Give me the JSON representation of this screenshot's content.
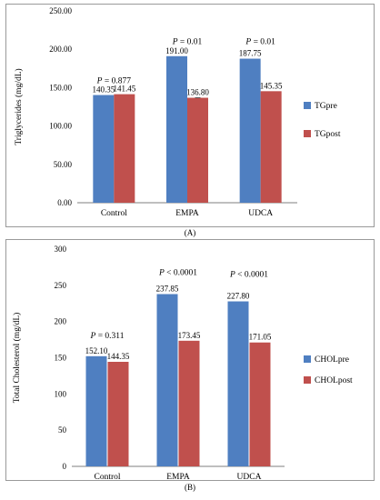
{
  "colors": {
    "pre": "#4f7fc1",
    "post": "#c0504d",
    "error": "#555555",
    "grid": "#d9d9d9",
    "axis": "#7f7f7f"
  },
  "chart_data": [
    {
      "type": "bar",
      "panel_label": "(A)",
      "ylabel": "Triglycerides (mg/dL)",
      "ylim": [
        0,
        250
      ],
      "ytick_step": 50,
      "ytick_decimals": 2,
      "grid": false,
      "legend_position": "right",
      "categories": [
        "Control",
        "EMPA",
        "UDCA"
      ],
      "series": [
        {
          "name": "TGpre",
          "color": "#4f7fc1",
          "values": [
            140.35,
            191.0,
            187.75
          ],
          "labels": [
            "140.35",
            "191.00",
            "187.75"
          ]
        },
        {
          "name": "TGpost",
          "color": "#c0504d",
          "values": [
            141.45,
            136.8,
            145.35
          ],
          "labels": [
            "141.45",
            "136.80",
            "145.35"
          ]
        }
      ],
      "error_bars": [
        null,
        [
          0,
          10,
          0
        ],
        null
      ],
      "annotations": [
        "P = 0.877",
        "P = 0.01",
        "P = 0.01"
      ],
      "annotation_values": [
        156,
        207,
        207
      ]
    },
    {
      "type": "bar",
      "panel_label": "(B)",
      "ylabel": "Total Cholesterol (mg/dL)",
      "ylim": [
        0,
        300
      ],
      "ytick_step": 50,
      "ytick_decimals": 0,
      "grid": false,
      "legend_position": "right",
      "categories": [
        "Control",
        "EMPA",
        "UDCA"
      ],
      "series": [
        {
          "name": "CHOLpre",
          "color": "#4f7fc1",
          "values": [
            152.1,
            237.85,
            227.8
          ],
          "labels": [
            "152.10",
            "237.85",
            "227.80"
          ]
        },
        {
          "name": "CHOLpost",
          "color": "#c0504d",
          "values": [
            144.35,
            173.45,
            171.05
          ],
          "labels": [
            "144.35",
            "173.45",
            "171.05"
          ]
        }
      ],
      "annotations": [
        "P = 0.311",
        "P < 0.0001",
        "P < 0.0001"
      ],
      "annotation_values": [
        177,
        264,
        262
      ]
    }
  ]
}
